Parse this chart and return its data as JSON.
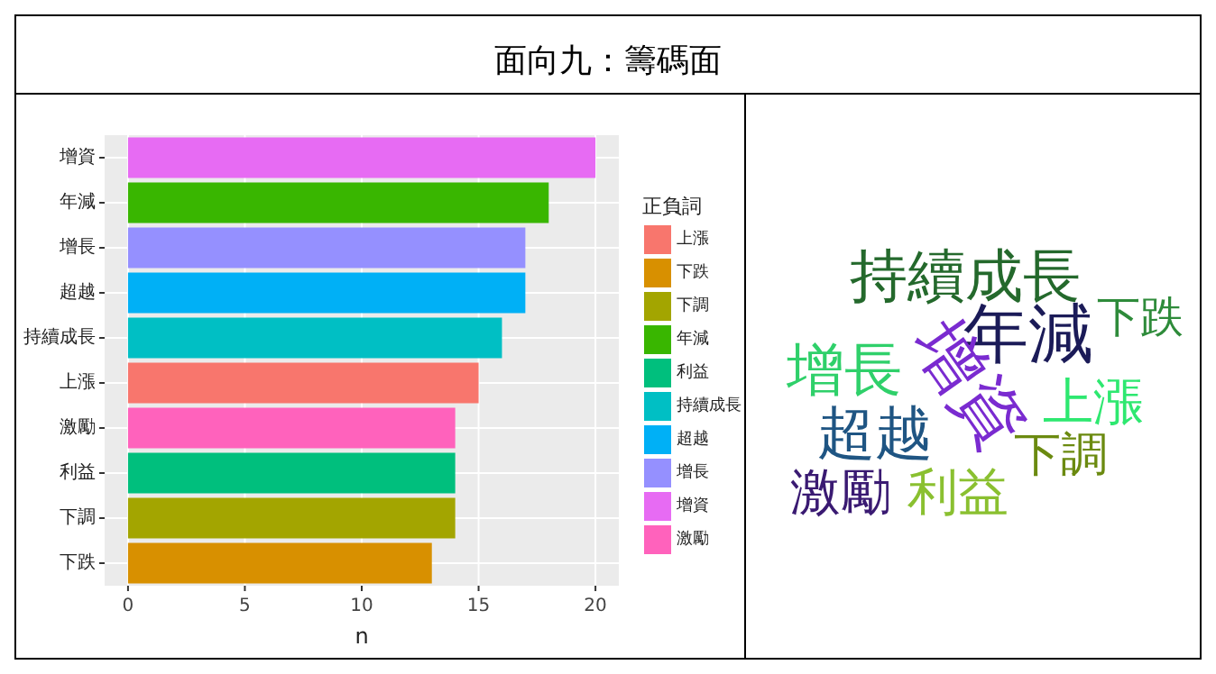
{
  "chart_data": [
    {
      "type": "bar",
      "title": "面向九：籌碼面",
      "orientation": "horizontal",
      "categories": [
        "增資",
        "年減",
        "增長",
        "超越",
        "持續成長",
        "上漲",
        "激勵",
        "利益",
        "下調",
        "下跌"
      ],
      "xlabel": "n",
      "legend_title": "正負詞",
      "legend": "right",
      "grid": true,
      "xlim": [
        -1,
        21
      ],
      "xticks": [
        0,
        5,
        10,
        15,
        20
      ],
      "series": [
        {
          "name": "上漲",
          "color": "#f8766d",
          "values": [
            null,
            null,
            null,
            null,
            null,
            15,
            null,
            null,
            null,
            null
          ]
        },
        {
          "name": "下跌",
          "color": "#d89000",
          "values": [
            null,
            null,
            null,
            null,
            null,
            null,
            null,
            null,
            null,
            13
          ]
        },
        {
          "name": "下調",
          "color": "#a3a500",
          "values": [
            null,
            null,
            null,
            null,
            null,
            null,
            null,
            null,
            14,
            null
          ]
        },
        {
          "name": "年減",
          "color": "#39b600",
          "values": [
            null,
            18,
            null,
            null,
            null,
            null,
            null,
            null,
            null,
            null
          ]
        },
        {
          "name": "利益",
          "color": "#00bf7d",
          "values": [
            null,
            null,
            null,
            null,
            null,
            null,
            null,
            14,
            null,
            null
          ]
        },
        {
          "name": "持續成長",
          "color": "#00bfc4",
          "values": [
            null,
            null,
            null,
            null,
            16,
            null,
            null,
            null,
            null,
            null
          ]
        },
        {
          "name": "超越",
          "color": "#00b0f6",
          "values": [
            null,
            null,
            null,
            17,
            null,
            null,
            null,
            null,
            null,
            null
          ]
        },
        {
          "name": "增長",
          "color": "#9590ff",
          "values": [
            null,
            null,
            17,
            null,
            null,
            null,
            null,
            null,
            null,
            null
          ]
        },
        {
          "name": "增資",
          "color": "#e76bf3",
          "values": [
            20,
            null,
            null,
            null,
            null,
            null,
            null,
            null,
            null,
            null
          ]
        },
        {
          "name": "激勵",
          "color": "#ff62bc",
          "values": [
            null,
            null,
            null,
            null,
            null,
            null,
            14,
            null,
            null,
            null
          ]
        }
      ]
    },
    {
      "type": "other",
      "categories": [
        "持續成長",
        "下跌",
        "年減",
        "增長",
        "增資",
        "上漲",
        "超越",
        "下調",
        "激勵",
        "利益"
      ],
      "colors": [
        "#24692c",
        "#2e8b3a",
        "#1b1b58",
        "#2fd06a",
        "#7a2bd0",
        "#2ee870",
        "#1f5583",
        "#6b8a10",
        "#3a1a72",
        "#8ac030"
      ]
    }
  ]
}
